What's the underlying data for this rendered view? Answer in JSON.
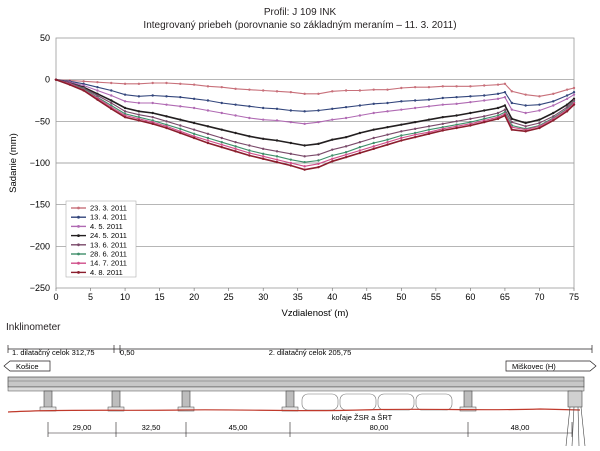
{
  "chart_data": {
    "type": "line",
    "title_line1": "Profil: J 109 INK",
    "title_line2": "Integrovaný priebeh (porovnanie so základným meraním – 11. 3. 2011)",
    "xlabel": "Vzdialenosť (m)",
    "ylabel": "Sadanie (mm)",
    "xlim": [
      0,
      75
    ],
    "ylim": [
      -250,
      50
    ],
    "x_ticks": [
      0,
      5,
      10,
      15,
      20,
      25,
      30,
      35,
      40,
      45,
      50,
      55,
      60,
      65,
      70,
      75
    ],
    "y_ticks": [
      50,
      0,
      -50,
      -100,
      -150,
      -200,
      -250
    ],
    "y_tick_labels": [
      "50",
      "0",
      "−50",
      "−100",
      "−150",
      "−200",
      "−250"
    ],
    "legend_position": "bottom-left",
    "x": [
      0,
      2,
      4,
      6,
      8,
      10,
      12,
      14,
      16,
      18,
      20,
      22,
      24,
      26,
      28,
      30,
      32,
      34,
      36,
      38,
      40,
      42,
      44,
      46,
      48,
      50,
      52,
      54,
      56,
      58,
      60,
      62,
      64,
      65,
      66,
      68,
      70,
      72,
      74,
      75
    ],
    "series": [
      {
        "name": "23. 3. 2011",
        "color": "#c8707a",
        "values": [
          0,
          -1,
          -2,
          -3,
          -4,
          -5,
          -5,
          -4,
          -4,
          -5,
          -6,
          -8,
          -9,
          -11,
          -12,
          -13,
          -14,
          -15,
          -17,
          -17,
          -14,
          -13,
          -13,
          -12,
          -12,
          -10,
          -9,
          -9,
          -8,
          -8,
          -8,
          -7,
          -6,
          -5,
          -14,
          -18,
          -20,
          -17,
          -12,
          -10
        ]
      },
      {
        "name": "13. 4. 2011",
        "color": "#33467c",
        "values": [
          0,
          -2,
          -5,
          -9,
          -13,
          -18,
          -20,
          -19,
          -20,
          -21,
          -23,
          -25,
          -28,
          -30,
          -32,
          -34,
          -35,
          -37,
          -38,
          -37,
          -35,
          -33,
          -31,
          -29,
          -28,
          -26,
          -25,
          -24,
          -22,
          -21,
          -20,
          -19,
          -17,
          -15,
          -28,
          -31,
          -30,
          -26,
          -19,
          -15
        ]
      },
      {
        "name": "4. 5. 2011",
        "color": "#b06ab3",
        "values": [
          0,
          -3,
          -7,
          -13,
          -19,
          -26,
          -28,
          -28,
          -30,
          -32,
          -34,
          -37,
          -40,
          -43,
          -46,
          -48,
          -49,
          -51,
          -53,
          -51,
          -48,
          -46,
          -43,
          -40,
          -38,
          -36,
          -34,
          -32,
          -30,
          -29,
          -27,
          -25,
          -23,
          -21,
          -36,
          -40,
          -37,
          -31,
          -23,
          -18
        ]
      },
      {
        "name": "24. 5. 2011",
        "color": "#231f20",
        "values": [
          0,
          -4,
          -9,
          -17,
          -25,
          -34,
          -38,
          -40,
          -44,
          -48,
          -52,
          -56,
          -60,
          -64,
          -68,
          -71,
          -73,
          -76,
          -79,
          -77,
          -72,
          -69,
          -64,
          -60,
          -57,
          -54,
          -51,
          -48,
          -45,
          -43,
          -40,
          -37,
          -34,
          -31,
          -47,
          -52,
          -48,
          -40,
          -30,
          -23
        ]
      },
      {
        "name": "13. 6. 2011",
        "color": "#7a4a6a",
        "values": [
          0,
          -4,
          -10,
          -19,
          -28,
          -38,
          -42,
          -45,
          -50,
          -55,
          -60,
          -65,
          -70,
          -75,
          -79,
          -83,
          -86,
          -89,
          -92,
          -90,
          -84,
          -80,
          -75,
          -70,
          -66,
          -62,
          -59,
          -56,
          -53,
          -50,
          -47,
          -44,
          -40,
          -36,
          -51,
          -56,
          -52,
          -44,
          -33,
          -25
        ]
      },
      {
        "name": "28. 6. 2011",
        "color": "#3f8f6a",
        "values": [
          0,
          -5,
          -11,
          -21,
          -31,
          -41,
          -45,
          -49,
          -54,
          -59,
          -65,
          -70,
          -75,
          -80,
          -85,
          -89,
          -92,
          -96,
          -99,
          -97,
          -91,
          -87,
          -81,
          -76,
          -72,
          -67,
          -64,
          -60,
          -57,
          -54,
          -51,
          -47,
          -43,
          -39,
          -55,
          -59,
          -55,
          -46,
          -35,
          -27
        ]
      },
      {
        "name": "14. 7. 2011",
        "color": "#d04f8a",
        "values": [
          0,
          -5,
          -12,
          -22,
          -33,
          -43,
          -47,
          -51,
          -56,
          -62,
          -68,
          -73,
          -78,
          -83,
          -88,
          -92,
          -96,
          -100,
          -104,
          -101,
          -95,
          -90,
          -85,
          -80,
          -75,
          -70,
          -66,
          -63,
          -59,
          -56,
          -53,
          -49,
          -45,
          -41,
          -57,
          -60,
          -56,
          -47,
          -36,
          -28
        ]
      },
      {
        "name": "4. 8. 2011",
        "color": "#8b1e2d",
        "values": [
          0,
          -6,
          -13,
          -24,
          -35,
          -45,
          -49,
          -53,
          -58,
          -64,
          -70,
          -76,
          -81,
          -86,
          -91,
          -95,
          -99,
          -103,
          -108,
          -105,
          -98,
          -93,
          -88,
          -83,
          -78,
          -73,
          -69,
          -65,
          -61,
          -58,
          -55,
          -51,
          -47,
          -43,
          -60,
          -62,
          -58,
          -49,
          -38,
          -30
        ]
      }
    ]
  },
  "inklinometer_heading": "Inklinometer",
  "bridge": {
    "celok1_label": "1. dilatačný celok 312,75",
    "gap_label": "0,50",
    "celok2_label": "2. dilatačný celok 205,75",
    "left_direction": "Košice",
    "right_direction": "Miškovec (H)",
    "under_label": "koľaje ŽSR a ŠRT",
    "spans": [
      "29,00",
      "32,50",
      "45,00",
      "80,00",
      "48,00"
    ],
    "accent_color": "#c0392b"
  }
}
